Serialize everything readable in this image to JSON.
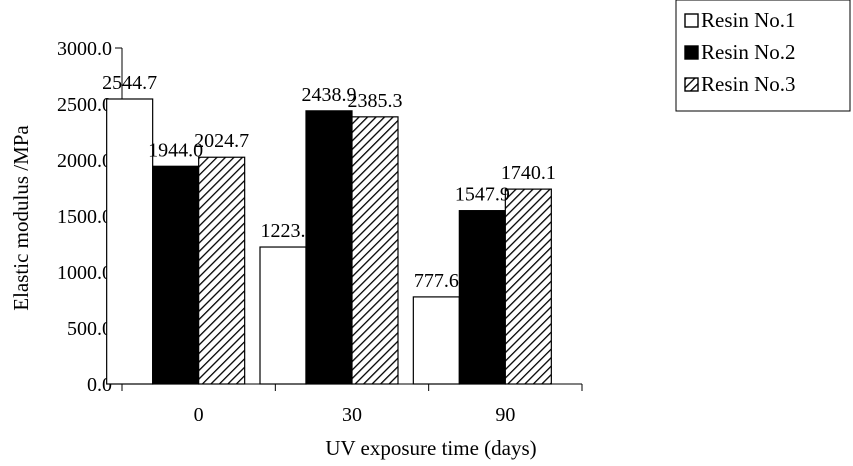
{
  "chart_data": {
    "type": "bar",
    "title": "",
    "xlabel": "UV exposure time (days)",
    "ylabel": "Elastic modulus /MPa",
    "categories": [
      "0",
      "30",
      "90"
    ],
    "ylim": [
      0,
      3000
    ],
    "yticks": [
      "0.0",
      "500.0",
      "1000.0",
      "1500.0",
      "2000.0",
      "2500.0",
      "3000.0"
    ],
    "grid": false,
    "legend_position": "top-right",
    "series": [
      {
        "name": "Resin No.1",
        "values": [
          2544.7,
          1223.0,
          777.6
        ],
        "labels": [
          "2544.7",
          "1223.",
          "777.6"
        ],
        "fill": "white"
      },
      {
        "name": "Resin No.2",
        "values": [
          1944.0,
          2438.9,
          1547.9
        ],
        "labels": [
          "1944.0",
          "2438.9",
          "1547.9"
        ],
        "fill": "black"
      },
      {
        "name": "Resin No.3",
        "values": [
          2024.7,
          2385.3,
          1740.1
        ],
        "labels": [
          "2024.7",
          "2385.3",
          "1740.1"
        ],
        "fill": "hatched"
      }
    ]
  }
}
